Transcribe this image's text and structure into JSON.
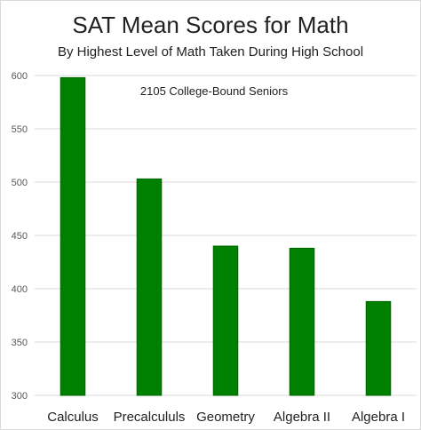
{
  "chart_data": {
    "type": "bar",
    "title": "SAT Mean Scores for Math",
    "subtitle": "By Highest Level of Math Taken During High School",
    "annotation": "2105 College-Bound Seniors",
    "xlabel": "",
    "ylabel": "",
    "categories": [
      "Calculus",
      "Precalcululs",
      "Geometry",
      "Algebra II",
      "Algebra I"
    ],
    "values": [
      598,
      503,
      440,
      438,
      388
    ],
    "ylim": [
      300,
      600
    ],
    "yticks": [
      300,
      350,
      400,
      450,
      500,
      550,
      600
    ],
    "grid": true,
    "legend": "none",
    "bar_color": "#008000",
    "bar_edge_color": "#006400"
  }
}
